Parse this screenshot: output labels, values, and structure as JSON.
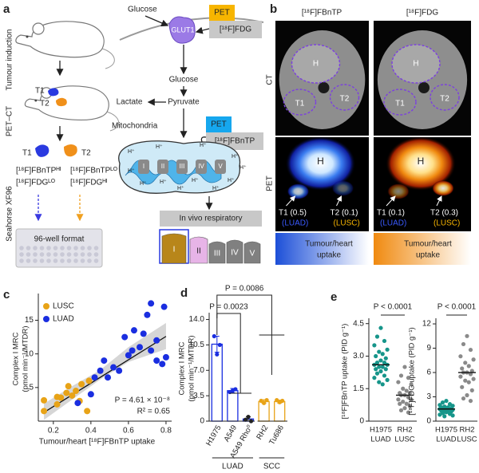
{
  "figure": {
    "a": {
      "letter": "a",
      "stages": [
        "Tumour induction",
        "PET–CT",
        "Seahorse XF96"
      ],
      "tumours": [
        "T1",
        "T2"
      ],
      "t1_profile": [
        "[¹⁸F]FBnTPᴴᴵ",
        "[¹⁸F]FDGᴸᴼ"
      ],
      "t2_profile": [
        "[¹⁸F]FBnTPᴸᴼ",
        "[¹⁸F]FDGᴴᴵ"
      ],
      "plate": "96-well format",
      "glucose": "Glucose",
      "glut": "GLUT1",
      "pet": "PET",
      "fdg": "[¹⁸F]FDG",
      "lactate": "Lactate",
      "pyruvate": "Pyruvate",
      "mitochondria": "Mitochondria",
      "fbntp": "[¹⁸F]FBnTP",
      "proton": "H⁺",
      "complexes": [
        "I",
        "II",
        "III",
        "IV",
        "V"
      ],
      "respiratory": "In vivo respiratory"
    },
    "b": {
      "letter": "b",
      "tracers": [
        "[¹⁸F]FBnTP",
        "[¹⁸F]FDG"
      ],
      "modalities": [
        "CT",
        "PET"
      ],
      "regions": [
        "H",
        "T1",
        "T2"
      ],
      "fbntp_calls": [
        "T1 (0.5)",
        "T2 (0.1)"
      ],
      "fdg_calls": [
        "T1 (0.1)",
        "T2 (0.3)"
      ],
      "subtypes": [
        "(LUAD)",
        "(LUSC)"
      ],
      "scale": [
        "Tumour/heart",
        "uptake"
      ]
    }
  },
  "chart_data": [
    {
      "type": "scatter",
      "label": "c",
      "xlabel": "Tumour/heart [¹⁸F]FBnTP uptake",
      "ylabel": [
        "Complex I MRC",
        "(pmol min⁻¹/MTDR)"
      ],
      "xlim": [
        0.12,
        0.83
      ],
      "ylim": [
        0,
        18.5
      ],
      "xticks": [
        0.2,
        0.4,
        0.6,
        0.8
      ],
      "yticks": [
        5,
        10,
        15
      ],
      "series": [
        {
          "name": "LUSC",
          "color": "#e8a317",
          "x": [
            0.15,
            0.15,
            0.22,
            0.22,
            0.24,
            0.27,
            0.28,
            0.3,
            0.32,
            0.34,
            0.35,
            0.38,
            0.39
          ],
          "y": [
            3.1,
            1.5,
            2.5,
            3.6,
            3.5,
            4.2,
            5.2,
            3.8,
            4.5,
            3.0,
            5.5,
            1.5,
            6.0
          ]
        },
        {
          "name": "LUAD",
          "color": "#1a2ee0",
          "x": [
            0.33,
            0.4,
            0.42,
            0.45,
            0.47,
            0.49,
            0.52,
            0.55,
            0.58,
            0.6,
            0.62,
            0.63,
            0.66,
            0.68,
            0.7,
            0.72,
            0.72,
            0.75,
            0.75,
            0.78,
            0.79,
            0.8
          ],
          "y": [
            2.7,
            4.0,
            6.5,
            7.5,
            9.0,
            6.5,
            8.0,
            7.5,
            12.5,
            9.8,
            10.5,
            13.5,
            11.0,
            13.0,
            15.8,
            10.5,
            17.5,
            12.0,
            9.0,
            8.5,
            17.0,
            9.5
          ]
        }
      ],
      "fit": {
        "x": [
          0.15,
          0.8
        ],
        "y": [
          1.3,
          12.6
        ],
        "color": "#111111"
      },
      "ci": {
        "x": [
          0.15,
          0.3,
          0.45,
          0.6,
          0.8
        ],
        "lower": [
          0.2,
          3.2,
          6.2,
          8.8,
          10.7
        ],
        "upper": [
          2.6,
          5.2,
          7.6,
          11.0,
          14.6
        ],
        "color": "#bbbbbb"
      },
      "annotations": [
        "P = 4.61 × 10⁻⁸",
        "R² = 0.65"
      ]
    },
    {
      "type": "bar",
      "label": "d",
      "ylabel": [
        "Complex I MRC",
        "(pmol min⁻¹/MTDR)"
      ],
      "categories": [
        "H1975",
        "A549",
        "A549 Rho⁰",
        "RH2",
        "Tu686"
      ],
      "groups": [
        "LUAD",
        "LUAD",
        "LUAD",
        "SCC",
        "SCC"
      ],
      "values": [
        10.6,
        4.2,
        0.3,
        2.7,
        2.7
      ],
      "errors": [
        1.1,
        0.3,
        0.3,
        0.25,
        0.2
      ],
      "points": [
        [
          11.7,
          9.2,
          10.5
        ],
        [
          4.0,
          4.2,
          4.4
        ],
        [
          0.2,
          0.6,
          0.0
        ],
        [
          2.8,
          2.5,
          2.9
        ],
        [
          2.9,
          2.6,
          2.8
        ]
      ],
      "colors": [
        "#1a2ee0",
        "#1a2ee0",
        "#1a2ee0",
        "#e8a317",
        "#e8a317"
      ],
      "point_colors": [
        "#1a2ee0",
        "#1a2ee0",
        "#222222",
        "#e8a317",
        "#e8a317"
      ],
      "ylim": [
        0,
        14.5
      ],
      "yticks": [
        0,
        3.5,
        {
          "value": 7,
          "label": "7.0"
        },
        10.5,
        {
          "value": 14,
          "label": "14.0"
        }
      ],
      "comparisons": [
        "P = 0.0086",
        "P = 0.0023"
      ]
    },
    {
      "type": "dot",
      "label": "e",
      "ylabel": "[¹⁸F]FBnTP uptake (PID g⁻¹)",
      "categories": [
        "H1975",
        "RH2"
      ],
      "subcategories": [
        "LUAD",
        "LUSC"
      ],
      "colors": [
        "#16958a",
        "#8a8a8a"
      ],
      "values": [
        [
          4.3,
          3.9,
          3.7,
          3.5,
          3.3,
          3.2,
          3.1,
          3.0,
          2.9,
          2.8,
          2.7,
          2.7,
          2.6,
          2.6,
          2.5,
          2.5,
          2.4,
          2.4,
          2.3,
          2.2,
          2.1,
          2.0,
          1.9,
          1.8,
          1.7
        ],
        [
          2.5,
          2.1,
          2.0,
          1.8,
          1.7,
          1.5,
          1.4,
          1.3,
          1.3,
          1.2,
          1.2,
          1.1,
          1.0,
          1.0,
          0.9,
          0.8,
          0.8,
          0.7,
          0.6,
          0.5,
          0.4
        ]
      ],
      "medians": [
        2.6,
        1.2
      ],
      "ylim": [
        0,
        4.6
      ],
      "yticks": [
        0,
        1.5,
        {
          "value": 3,
          "label": "3.0"
        },
        4.5
      ],
      "annotation": "P < 0.0001"
    },
    {
      "type": "dot",
      "ylabel": "[¹⁸F]FDG uptake (PID g⁻¹)",
      "categories": [
        "H1975",
        "RH2"
      ],
      "subcategories": [
        "LUAD",
        "LUSC"
      ],
      "colors": [
        "#16958a",
        "#8a8a8a"
      ],
      "values": [
        [
          2.5,
          2.3,
          2.1,
          2.0,
          1.9,
          1.8,
          1.7,
          1.7,
          1.6,
          1.6,
          1.5,
          1.5,
          1.5,
          1.4,
          1.4,
          1.3,
          1.3,
          1.2,
          1.1,
          1.0,
          0.9,
          0.8,
          0.7,
          0.6
        ],
        [
          10.5,
          9.5,
          8.8,
          8.0,
          7.6,
          7.2,
          6.8,
          6.5,
          6.2,
          6.0,
          6.0,
          5.8,
          5.5,
          5.2,
          5.0,
          4.8,
          4.2,
          3.8,
          3.2,
          2.8,
          2.5
        ]
      ],
      "medians": [
        1.5,
        6.0
      ],
      "ylim": [
        0,
        12.3
      ],
      "yticks": [
        0,
        3,
        6,
        9,
        12
      ],
      "annotation": "P < 0.0001"
    }
  ]
}
